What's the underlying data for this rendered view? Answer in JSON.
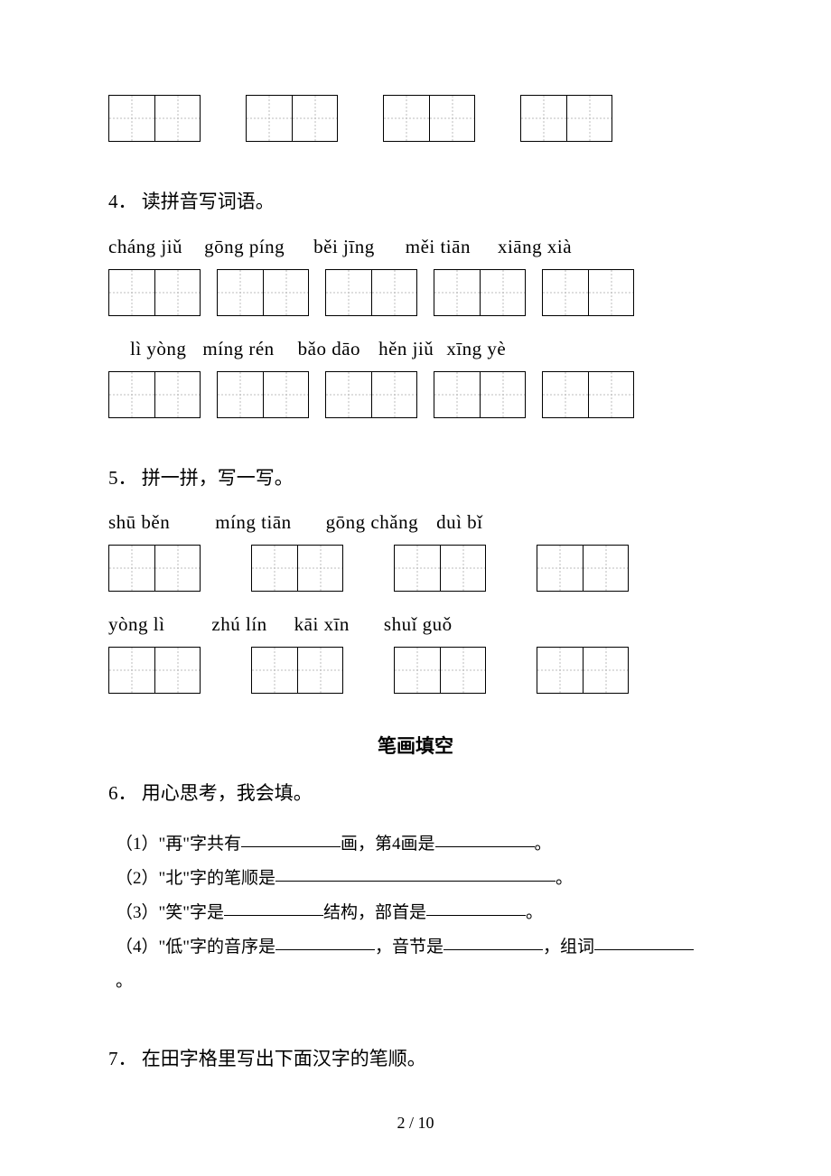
{
  "q3": {
    "box_count": 4,
    "cells_per_box": 2
  },
  "q4": {
    "heading_num": "4．",
    "heading_text": "读拼音写词语。",
    "row1_pinyin": [
      "cháng jiǔ",
      "gōng píng",
      "běi jīng",
      "měi tiān",
      "xiāng xià"
    ],
    "row1_offsets": [
      0,
      24,
      32,
      34,
      30
    ],
    "row1_boxes": 5,
    "row2_pinyin": [
      "lì  yòng",
      "míng rén",
      "bǎo dāo",
      "hěn jiǔ",
      "xīng  yè"
    ],
    "row2_left_indent": 24,
    "row2_offsets": [
      0,
      18,
      26,
      20,
      14
    ],
    "row2_boxes": 5
  },
  "q5": {
    "heading_num": "5．",
    "heading_text": "拼一拼，写一写。",
    "row1_pinyin": [
      "shū  běn",
      "míng tiān",
      "gōng chǎng",
      "duì  bǐ"
    ],
    "row1_offsets": [
      0,
      50,
      38,
      20
    ],
    "row1_boxes": 4,
    "row2_pinyin": [
      "yòng  lì",
      "zhú  lín",
      "kāi  xīn",
      "shuǐ guǒ"
    ],
    "row2_offsets": [
      0,
      52,
      30,
      38
    ],
    "row2_boxes": 4
  },
  "section_title": "笔画填空",
  "q6": {
    "heading_num": "6．",
    "heading_text": "用心思考，我会填。",
    "lines": {
      "l1_a": "（1）\"再\"字共有",
      "l1_b": "画，第4画是",
      "l1_c": "。",
      "l2_a": "（2）\"北\"字的笔顺是",
      "l2_b": "。",
      "l3_a": "（3）\"笑\"字是",
      "l3_b": "结构，部首是",
      "l3_c": "。",
      "l4_a": "（4）\"低\"字的音序是",
      "l4_b": "，音节是",
      "l4_c": "，组词",
      "l5": "。"
    },
    "blanks": {
      "short": 110,
      "med": 110,
      "long": 310
    }
  },
  "q7": {
    "heading_num": "7．",
    "heading_text": "在田字格里写出下面汉字的笔顺。"
  },
  "page_num": "2 / 10"
}
